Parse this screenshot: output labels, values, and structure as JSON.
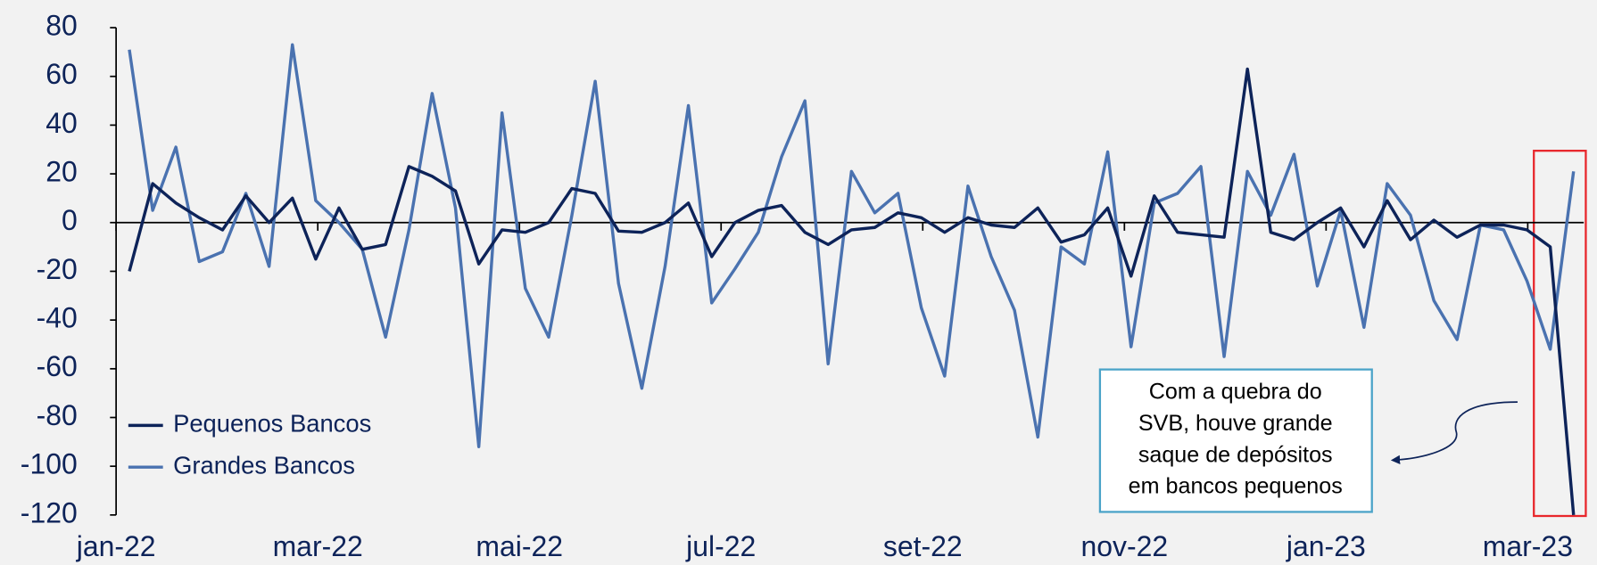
{
  "chart_data": {
    "type": "line",
    "categories": [
      null,
      null,
      null,
      null,
      null,
      null,
      null,
      null,
      null,
      null,
      null,
      null,
      null,
      null,
      null,
      null,
      null,
      null,
      null,
      null,
      null,
      null,
      null,
      null,
      null,
      null,
      null,
      null,
      null,
      null,
      null,
      null,
      null,
      null,
      null,
      null,
      null,
      null,
      null,
      null,
      null,
      null,
      null,
      null,
      null,
      null,
      null,
      null,
      null,
      null,
      null,
      null,
      null,
      null,
      null,
      null,
      null,
      null,
      null,
      null,
      null,
      null,
      null
    ],
    "xtick_labels": [
      "jan-22",
      "mar-22",
      "mai-22",
      "jul-22",
      "set-22",
      "nov-22",
      "jan-23",
      "mar-23"
    ],
    "series": [
      {
        "name": "Pequenos Bancos",
        "color": "#0d2359",
        "values": [
          -20,
          16,
          8,
          2,
          -3,
          11,
          0,
          10,
          -15,
          6,
          -11,
          -9,
          23,
          19,
          13,
          -17,
          -3,
          -4,
          0,
          14,
          12,
          -3.5,
          -4,
          0,
          8,
          -14,
          0,
          5,
          7,
          -4,
          -9,
          -3,
          -2,
          4,
          2,
          -4,
          2,
          -1,
          -2,
          6,
          -8,
          -5,
          6,
          -22,
          11,
          -4,
          -5,
          -6,
          63,
          -4,
          -7,
          0,
          6,
          -10,
          9,
          -7,
          1,
          -6,
          -1,
          -1,
          -3,
          -10,
          -120
        ]
      },
      {
        "name": "Grandes Bancos",
        "color": "#4a72b0",
        "values": [
          71,
          5,
          31,
          -16,
          -12,
          12,
          -18,
          73,
          9,
          0,
          -11,
          -47,
          -3,
          53,
          6,
          -92,
          45,
          -27,
          -47,
          3,
          58,
          -25,
          -68,
          -18,
          48,
          -33,
          -19,
          -4,
          27,
          50,
          -58,
          21,
          4,
          12,
          -35,
          -63,
          15,
          -14,
          -36,
          -88,
          -10,
          -17,
          29,
          -51,
          8,
          12,
          23,
          -55,
          21,
          3,
          28,
          -26,
          5,
          -43,
          16,
          3,
          -32,
          -48,
          -1,
          -3,
          -24,
          -52,
          21
        ]
      }
    ],
    "ylim": [
      -120,
      80
    ],
    "yticks": [
      -120,
      -100,
      -80,
      -60,
      -40,
      -20,
      0,
      20,
      40,
      60,
      80
    ],
    "legend": "lower left",
    "annotation": [
      "Com a quebra do",
      "SVB, houve grande",
      "saque de depósitos",
      "em bancos pequenos"
    ],
    "highlight_color": "#e8262b"
  }
}
